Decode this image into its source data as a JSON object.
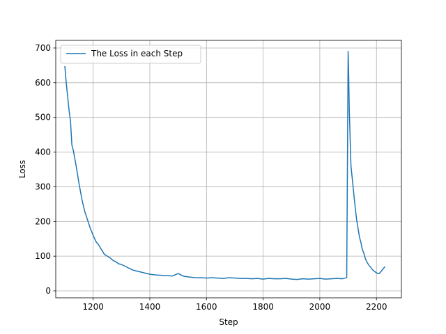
{
  "chart_data": {
    "type": "line",
    "title": "",
    "xlabel": "Step",
    "ylabel": "Loss",
    "xlim": [
      1068,
      2288
    ],
    "ylim": [
      -20,
      722
    ],
    "xticks": [
      1200,
      1400,
      1600,
      1800,
      2000,
      2200
    ],
    "yticks": [
      0,
      100,
      200,
      300,
      400,
      500,
      600,
      700
    ],
    "grid": true,
    "legend_position": "upper left",
    "series": [
      {
        "name": "The Loss in each Step",
        "color": "#1f77b4",
        "x_start": 1100,
        "x_end": 2230,
        "x": [
          1100,
          1105,
          1110,
          1115,
          1120,
          1125,
          1130,
          1140,
          1150,
          1160,
          1170,
          1180,
          1190,
          1200,
          1210,
          1220,
          1230,
          1240,
          1250,
          1260,
          1270,
          1280,
          1290,
          1300,
          1310,
          1320,
          1330,
          1340,
          1350,
          1360,
          1370,
          1380,
          1390,
          1400,
          1420,
          1440,
          1460,
          1480,
          1500,
          1520,
          1540,
          1560,
          1580,
          1600,
          1620,
          1640,
          1660,
          1680,
          1700,
          1720,
          1740,
          1760,
          1780,
          1800,
          1820,
          1840,
          1860,
          1880,
          1900,
          1920,
          1940,
          1960,
          1980,
          2000,
          2020,
          2040,
          2060,
          2080,
          2095,
          2100,
          2102,
          2104,
          2106,
          2108,
          2110,
          2115,
          2120,
          2125,
          2130,
          2135,
          2140,
          2145,
          2150,
          2155,
          2160,
          2165,
          2170,
          2175,
          2180,
          2185,
          2190,
          2195,
          2200,
          2205,
          2210,
          2215,
          2220,
          2225,
          2230
        ],
        "values": [
          648,
          600,
          560,
          520,
          490,
          420,
          405,
          360,
          310,
          265,
          230,
          205,
          180,
          160,
          142,
          132,
          118,
          105,
          100,
          95,
          88,
          84,
          78,
          76,
          72,
          68,
          64,
          60,
          58,
          56,
          54,
          52,
          50,
          48,
          46,
          45,
          44,
          43,
          50,
          42,
          40,
          38,
          38,
          37,
          38,
          37,
          36,
          38,
          37,
          36,
          36,
          35,
          36,
          34,
          36,
          35,
          35,
          36,
          34,
          33,
          35,
          34,
          35,
          36,
          34,
          35,
          36,
          35,
          38,
          690,
          620,
          520,
          470,
          410,
          360,
          320,
          280,
          240,
          205,
          180,
          155,
          140,
          120,
          110,
          95,
          85,
          78,
          72,
          68,
          62,
          58,
          55,
          52,
          50,
          50,
          55,
          60,
          65,
          70
        ]
      }
    ]
  }
}
